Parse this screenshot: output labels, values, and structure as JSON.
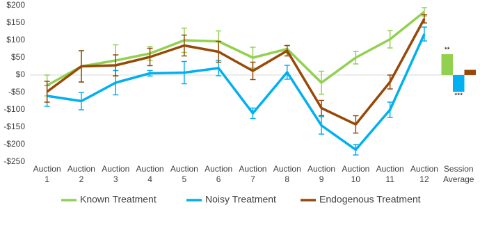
{
  "chart_data": {
    "type": "line",
    "categories": [
      [
        "Auction",
        "1"
      ],
      [
        "Auction",
        "2"
      ],
      [
        "Auction",
        "3"
      ],
      [
        "Auction",
        "4"
      ],
      [
        "Auction",
        "5"
      ],
      [
        "Auction",
        "6"
      ],
      [
        "Auction",
        "7"
      ],
      [
        "Auction",
        "8"
      ],
      [
        "Auction",
        "9"
      ],
      [
        "Auction",
        "10"
      ],
      [
        "Auction",
        "11"
      ],
      [
        "Auction",
        "12"
      ],
      [
        "Session",
        "Average"
      ]
    ],
    "series": [
      {
        "name": "Known Treatment",
        "color": "#92d050",
        "values": [
          -30,
          25,
          42,
          62,
          100,
          97,
          50,
          75,
          -22,
          50,
          103,
          182,
          60
        ],
        "errors": [
          30,
          45,
          45,
          20,
          35,
          30,
          30,
          10,
          33,
          18,
          25,
          12,
          null
        ],
        "significance": "**"
      },
      {
        "name": "Noisy Treatment",
        "color": "#00b0f0",
        "values": [
          -60,
          -75,
          -22,
          5,
          7,
          20,
          -110,
          8,
          -145,
          -215,
          -100,
          118,
          -48
        ],
        "errors": [
          30,
          25,
          35,
          8,
          32,
          22,
          15,
          20,
          25,
          15,
          22,
          20,
          null
        ],
        "significance": "***"
      },
      {
        "name": "Endogenous Treatment",
        "color": "#984807",
        "values": [
          -48,
          25,
          28,
          52,
          85,
          67,
          12,
          70,
          -95,
          -142,
          -20,
          162,
          15
        ],
        "errors": [
          30,
          45,
          30,
          25,
          30,
          30,
          25,
          15,
          22,
          25,
          20,
          12,
          null
        ]
      }
    ],
    "ylim": [
      -250,
      200
    ],
    "yticks": [
      {
        "value": -250,
        "label": "-$250"
      },
      {
        "value": -200,
        "label": "-$200"
      },
      {
        "value": -150,
        "label": "-$150"
      },
      {
        "value": -100,
        "label": "-$100"
      },
      {
        "value": -50,
        "label": "-$50"
      },
      {
        "value": 0,
        "label": "$0"
      },
      {
        "value": 50,
        "label": "$50"
      },
      {
        "value": 100,
        "label": "$100"
      },
      {
        "value": 150,
        "label": "$150"
      },
      {
        "value": 200,
        "label": "$200"
      }
    ],
    "grid": false,
    "legend": "bottom"
  }
}
